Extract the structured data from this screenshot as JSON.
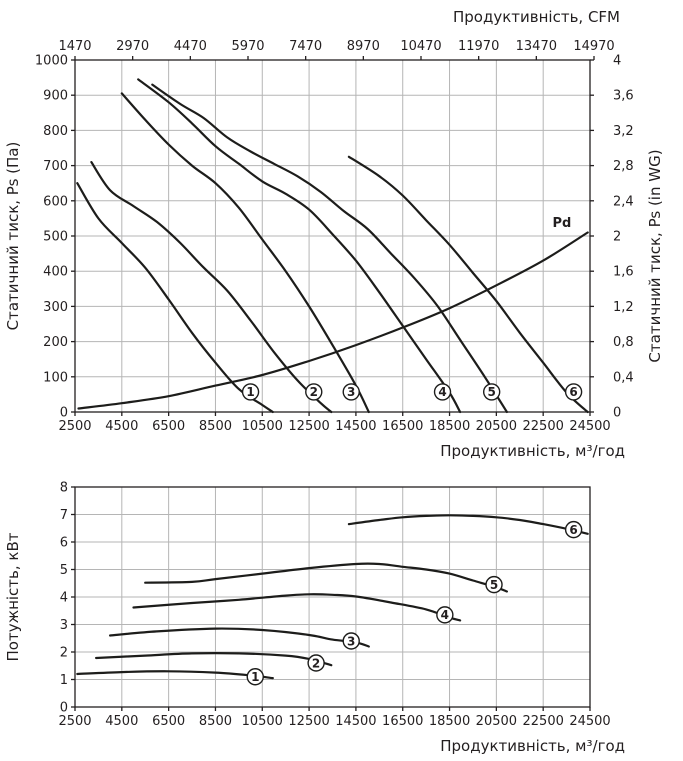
{
  "chart_data": [
    {
      "type": "line",
      "title": "",
      "xlabel": "Продуктивність, м³/год",
      "x2label": "Продуктивність, CFM",
      "ylabel": "Статичний тиск, Ps (Па)",
      "y2label": "Статичний тиск, Ps (in WG)",
      "xlim": [
        2500,
        24500
      ],
      "ylim": [
        0,
        1000
      ],
      "grid": true,
      "x_ticks": [
        2500,
        4500,
        6500,
        8500,
        10500,
        12500,
        14500,
        16500,
        18500,
        20500,
        22500,
        24500
      ],
      "x_tick_labels": [
        "2500",
        "4500",
        "6500",
        "8500",
        "10500",
        "12500",
        "14500",
        "16500",
        "18500",
        "20500",
        "22500",
        "24500"
      ],
      "x2_tick_labels": [
        "1470",
        "2970",
        "4470",
        "5970",
        "7470",
        "8970",
        "10470",
        "11970",
        "13470",
        "14970"
      ],
      "y_ticks": [
        0,
        100,
        200,
        300,
        400,
        500,
        600,
        700,
        800,
        900,
        1000
      ],
      "y2_tick_labels": [
        "0",
        "0,4",
        "0,8",
        "1,2",
        "1,6",
        "2",
        "2,4",
        "2,8",
        "3,2",
        "3,6",
        "4"
      ],
      "series": [
        {
          "name": "1",
          "x": [
            2600,
            3500,
            4500,
            5500,
            6500,
            7500,
            8500,
            9500,
            10500,
            10950
          ],
          "y": [
            650,
            550,
            480,
            410,
            320,
            225,
            140,
            65,
            20,
            0
          ],
          "label_at": [
            10000,
            57
          ]
        },
        {
          "name": "2",
          "x": [
            3200,
            4000,
            5000,
            6000,
            7000,
            8000,
            9000,
            10000,
            11000,
            12000,
            13000,
            13450
          ],
          "y": [
            710,
            630,
            585,
            540,
            480,
            410,
            345,
            260,
            170,
            90,
            25,
            0
          ],
          "label_at": [
            12700,
            57
          ]
        },
        {
          "name": "3",
          "x": [
            4500,
            5500,
            6500,
            7500,
            8500,
            9500,
            10500,
            11500,
            12500,
            13500,
            14500,
            15050
          ],
          "y": [
            905,
            830,
            760,
            700,
            650,
            580,
            490,
            400,
            300,
            190,
            75,
            0
          ],
          "label_at": [
            14300,
            57
          ]
        },
        {
          "name": "4",
          "x": [
            5200,
            6500,
            7500,
            8500,
            9500,
            10500,
            11500,
            12500,
            13500,
            14500,
            15500,
            16500,
            17500,
            18500,
            18950
          ],
          "y": [
            945,
            880,
            820,
            755,
            705,
            655,
            620,
            575,
            505,
            430,
            340,
            245,
            150,
            55,
            0
          ],
          "label_at": [
            18200,
            57
          ]
        },
        {
          "name": "5",
          "x": [
            5800,
            7000,
            8000,
            9000,
            10000,
            11000,
            12000,
            13000,
            14000,
            15000,
            16000,
            17000,
            18000,
            19000,
            20000,
            20950
          ],
          "y": [
            930,
            875,
            835,
            780,
            740,
            705,
            670,
            625,
            570,
            520,
            450,
            380,
            300,
            200,
            100,
            0
          ],
          "label_at": [
            20300,
            57
          ]
        },
        {
          "name": "6",
          "x": [
            14200,
            15500,
            16500,
            17500,
            18500,
            19500,
            20500,
            21500,
            22500,
            23500,
            24400
          ],
          "y": [
            725,
            670,
            615,
            545,
            475,
            395,
            315,
            225,
            140,
            55,
            0
          ],
          "label_at": [
            23800,
            57
          ]
        },
        {
          "name": "Pd",
          "x": [
            2650,
            4500,
            6500,
            8500,
            10500,
            12500,
            14500,
            16500,
            18500,
            20500,
            22500,
            24400
          ],
          "y": [
            10,
            25,
            45,
            75,
            105,
            145,
            190,
            240,
            295,
            360,
            430,
            510
          ],
          "label_at": [
            22900,
            525
          ]
        }
      ]
    },
    {
      "type": "line",
      "title": "",
      "xlabel": "Продуктивність, м³/год",
      "ylabel": "Потужність, кВт",
      "xlim": [
        2500,
        24500
      ],
      "ylim": [
        0,
        8
      ],
      "grid": true,
      "x_ticks": [
        2500,
        4500,
        6500,
        8500,
        10500,
        12500,
        14500,
        16500,
        18500,
        20500,
        22500,
        24500
      ],
      "x_tick_labels": [
        "2500",
        "4500",
        "6500",
        "8500",
        "10500",
        "12500",
        "14500",
        "16500",
        "18500",
        "20500",
        "22500",
        "24500"
      ],
      "y_ticks": [
        0,
        1,
        2,
        3,
        4,
        5,
        6,
        7,
        8
      ],
      "series": [
        {
          "name": "1",
          "x": [
            2600,
            4500,
            6500,
            8500,
            10000,
            10950
          ],
          "y": [
            1.2,
            1.27,
            1.3,
            1.25,
            1.15,
            1.05
          ],
          "label_at": [
            10200,
            1.1
          ]
        },
        {
          "name": "2",
          "x": [
            3400,
            5500,
            7500,
            9500,
            11500,
            12500,
            13450
          ],
          "y": [
            1.78,
            1.87,
            1.95,
            1.95,
            1.87,
            1.75,
            1.52
          ],
          "label_at": [
            12800,
            1.6
          ]
        },
        {
          "name": "3",
          "x": [
            4000,
            6000,
            8500,
            10500,
            12500,
            13500,
            14500,
            15050
          ],
          "y": [
            2.6,
            2.75,
            2.85,
            2.8,
            2.62,
            2.45,
            2.35,
            2.2
          ],
          "label_at": [
            14300,
            2.4
          ]
        },
        {
          "name": "4",
          "x": [
            5000,
            7500,
            9500,
            11500,
            12500,
            13500,
            14500,
            16000,
            17500,
            18500,
            18950
          ],
          "y": [
            3.62,
            3.78,
            3.9,
            4.05,
            4.1,
            4.08,
            4.02,
            3.8,
            3.55,
            3.25,
            3.15
          ],
          "label_at": [
            18300,
            3.35
          ]
        },
        {
          "name": "5",
          "x": [
            5500,
            7500,
            8500,
            10500,
            12500,
            14500,
            15500,
            16500,
            17500,
            18500,
            19500,
            20500,
            20950
          ],
          "y": [
            4.52,
            4.55,
            4.65,
            4.85,
            5.05,
            5.2,
            5.2,
            5.1,
            5.0,
            4.85,
            4.6,
            4.35,
            4.2
          ],
          "label_at": [
            20400,
            4.45
          ]
        },
        {
          "name": "6",
          "x": [
            14200,
            15500,
            16500,
            17500,
            18500,
            19500,
            20500,
            21500,
            22500,
            23500,
            24400
          ],
          "y": [
            6.65,
            6.8,
            6.9,
            6.95,
            6.97,
            6.95,
            6.9,
            6.8,
            6.65,
            6.48,
            6.3
          ],
          "label_at": [
            23800,
            6.45
          ]
        }
      ]
    }
  ]
}
